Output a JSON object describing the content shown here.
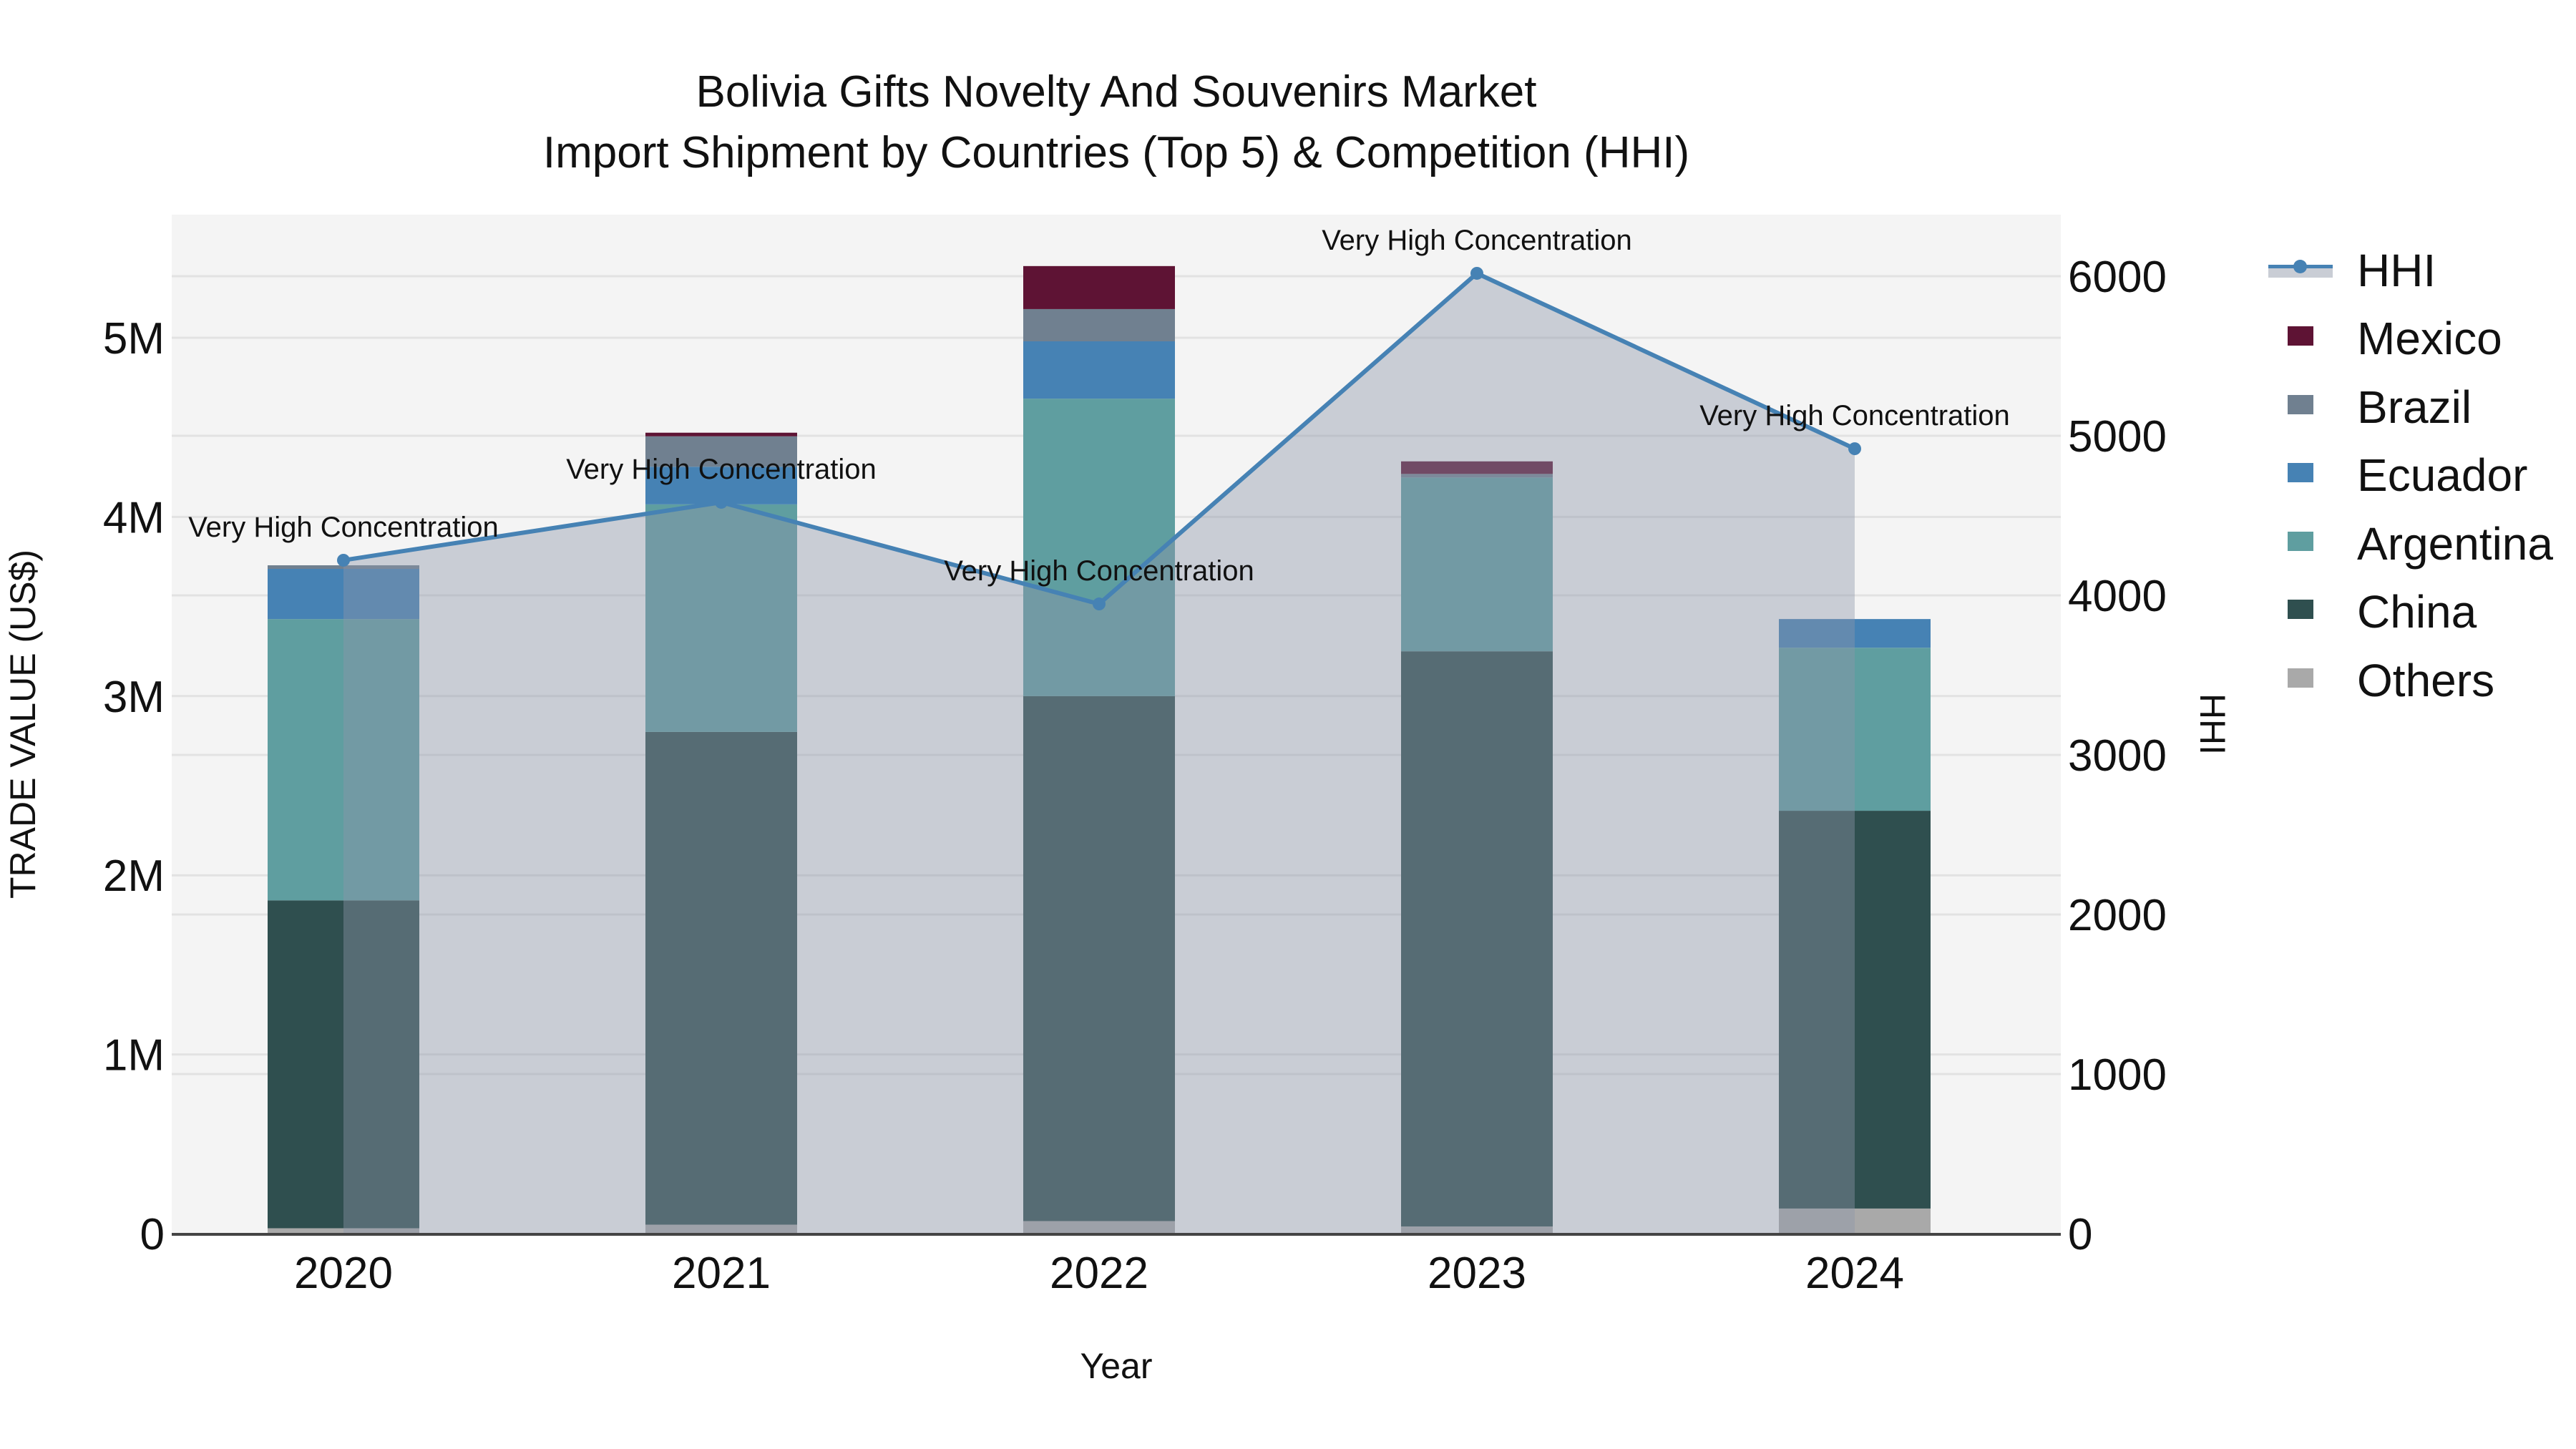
{
  "title": {
    "line1": "Bolivia Gifts Novelty And Souvenirs Market",
    "line2": "Import Shipment by Countries (Top 5) & Competition (HHI)"
  },
  "axes": {
    "x_title": "Year",
    "y_title": "TRADE VALUE (US$)",
    "y2_title": "HHI",
    "y_ticks": [
      {
        "value": 0,
        "label": "0"
      },
      {
        "value": 1000000,
        "label": "1M"
      },
      {
        "value": 2000000,
        "label": "2M"
      },
      {
        "value": 3000000,
        "label": "3M"
      },
      {
        "value": 4000000,
        "label": "4M"
      },
      {
        "value": 5000000,
        "label": "5M"
      }
    ],
    "y2_ticks": [
      {
        "value": 0,
        "label": "0"
      },
      {
        "value": 1000,
        "label": "1000"
      },
      {
        "value": 2000,
        "label": "2000"
      },
      {
        "value": 3000,
        "label": "3000"
      },
      {
        "value": 4000,
        "label": "4000"
      },
      {
        "value": 5000,
        "label": "5000"
      },
      {
        "value": 6000,
        "label": "6000"
      }
    ]
  },
  "legend": {
    "items": [
      {
        "key": "HHI",
        "label": "HHI",
        "type": "line",
        "color": "#4682b4",
        "fill": "#c9cdd5"
      },
      {
        "key": "Mexico",
        "label": "Mexico",
        "type": "bar",
        "color": "#5e1334"
      },
      {
        "key": "Brazil",
        "label": "Brazil",
        "type": "bar",
        "color": "#708090"
      },
      {
        "key": "Ecuador",
        "label": "Ecuador",
        "type": "bar",
        "color": "#4682b4"
      },
      {
        "key": "Argentina",
        "label": "Argentina",
        "type": "bar",
        "color": "#5f9ea0"
      },
      {
        "key": "China",
        "label": "China",
        "type": "bar",
        "color": "#2f4f4f"
      },
      {
        "key": "Others",
        "label": "Others",
        "type": "bar",
        "color": "#a9a9a9"
      }
    ]
  },
  "colors": {
    "plot_bg": "#f4f4f4",
    "paper_bg": "#ffffff",
    "grid": "#e2e2e2",
    "hhi_line": "#4682b4",
    "hhi_fill": "rgba(140,150,170,0.42)",
    "axis_line": "#444444"
  },
  "chart_data": {
    "type": "bar",
    "stacked": true,
    "title": "Bolivia Gifts Novelty And Souvenirs Market — Import Shipment by Countries (Top 5) & Competition (HHI)",
    "xlabel": "Year",
    "ylabel": "TRADE VALUE (US$)",
    "y2label": "HHI",
    "ylim": [
      0,
      5700000
    ],
    "y2lim": [
      0,
      6380
    ],
    "grid": true,
    "legend_position": "right",
    "categories": [
      "2020",
      "2021",
      "2022",
      "2023",
      "2024"
    ],
    "series": [
      {
        "name": "Others",
        "type": "bar",
        "axis": "y",
        "color": "#a9a9a9",
        "values": [
          30000,
          50000,
          70000,
          40000,
          140000
        ]
      },
      {
        "name": "China",
        "type": "bar",
        "axis": "y",
        "color": "#2f4f4f",
        "values": [
          1830000,
          2750000,
          2930000,
          3210000,
          2220000
        ]
      },
      {
        "name": "Argentina",
        "type": "bar",
        "axis": "y",
        "color": "#5f9ea0",
        "values": [
          1570000,
          1270000,
          1660000,
          970000,
          910000
        ]
      },
      {
        "name": "Ecuador",
        "type": "bar",
        "axis": "y",
        "color": "#4682b4",
        "values": [
          280000,
          210000,
          320000,
          0,
          160000
        ]
      },
      {
        "name": "Brazil",
        "type": "bar",
        "axis": "y",
        "color": "#708090",
        "values": [
          20000,
          170000,
          180000,
          20000,
          0
        ]
      },
      {
        "name": "Mexico",
        "type": "bar",
        "axis": "y",
        "color": "#5e1334",
        "values": [
          0,
          20000,
          240000,
          70000,
          0
        ]
      },
      {
        "name": "HHI",
        "type": "line+area",
        "axis": "y2",
        "color": "#4682b4",
        "values": [
          4220,
          4583,
          3946,
          6018,
          4919
        ]
      }
    ],
    "annotations": [
      {
        "x": "2020",
        "text": "Very High Concentration"
      },
      {
        "x": "2021",
        "text": "Very High Concentration"
      },
      {
        "x": "2022",
        "text": "Very High Concentration"
      },
      {
        "x": "2023",
        "text": "Very High Concentration"
      },
      {
        "x": "2024",
        "text": "Very High Concentration"
      }
    ]
  }
}
